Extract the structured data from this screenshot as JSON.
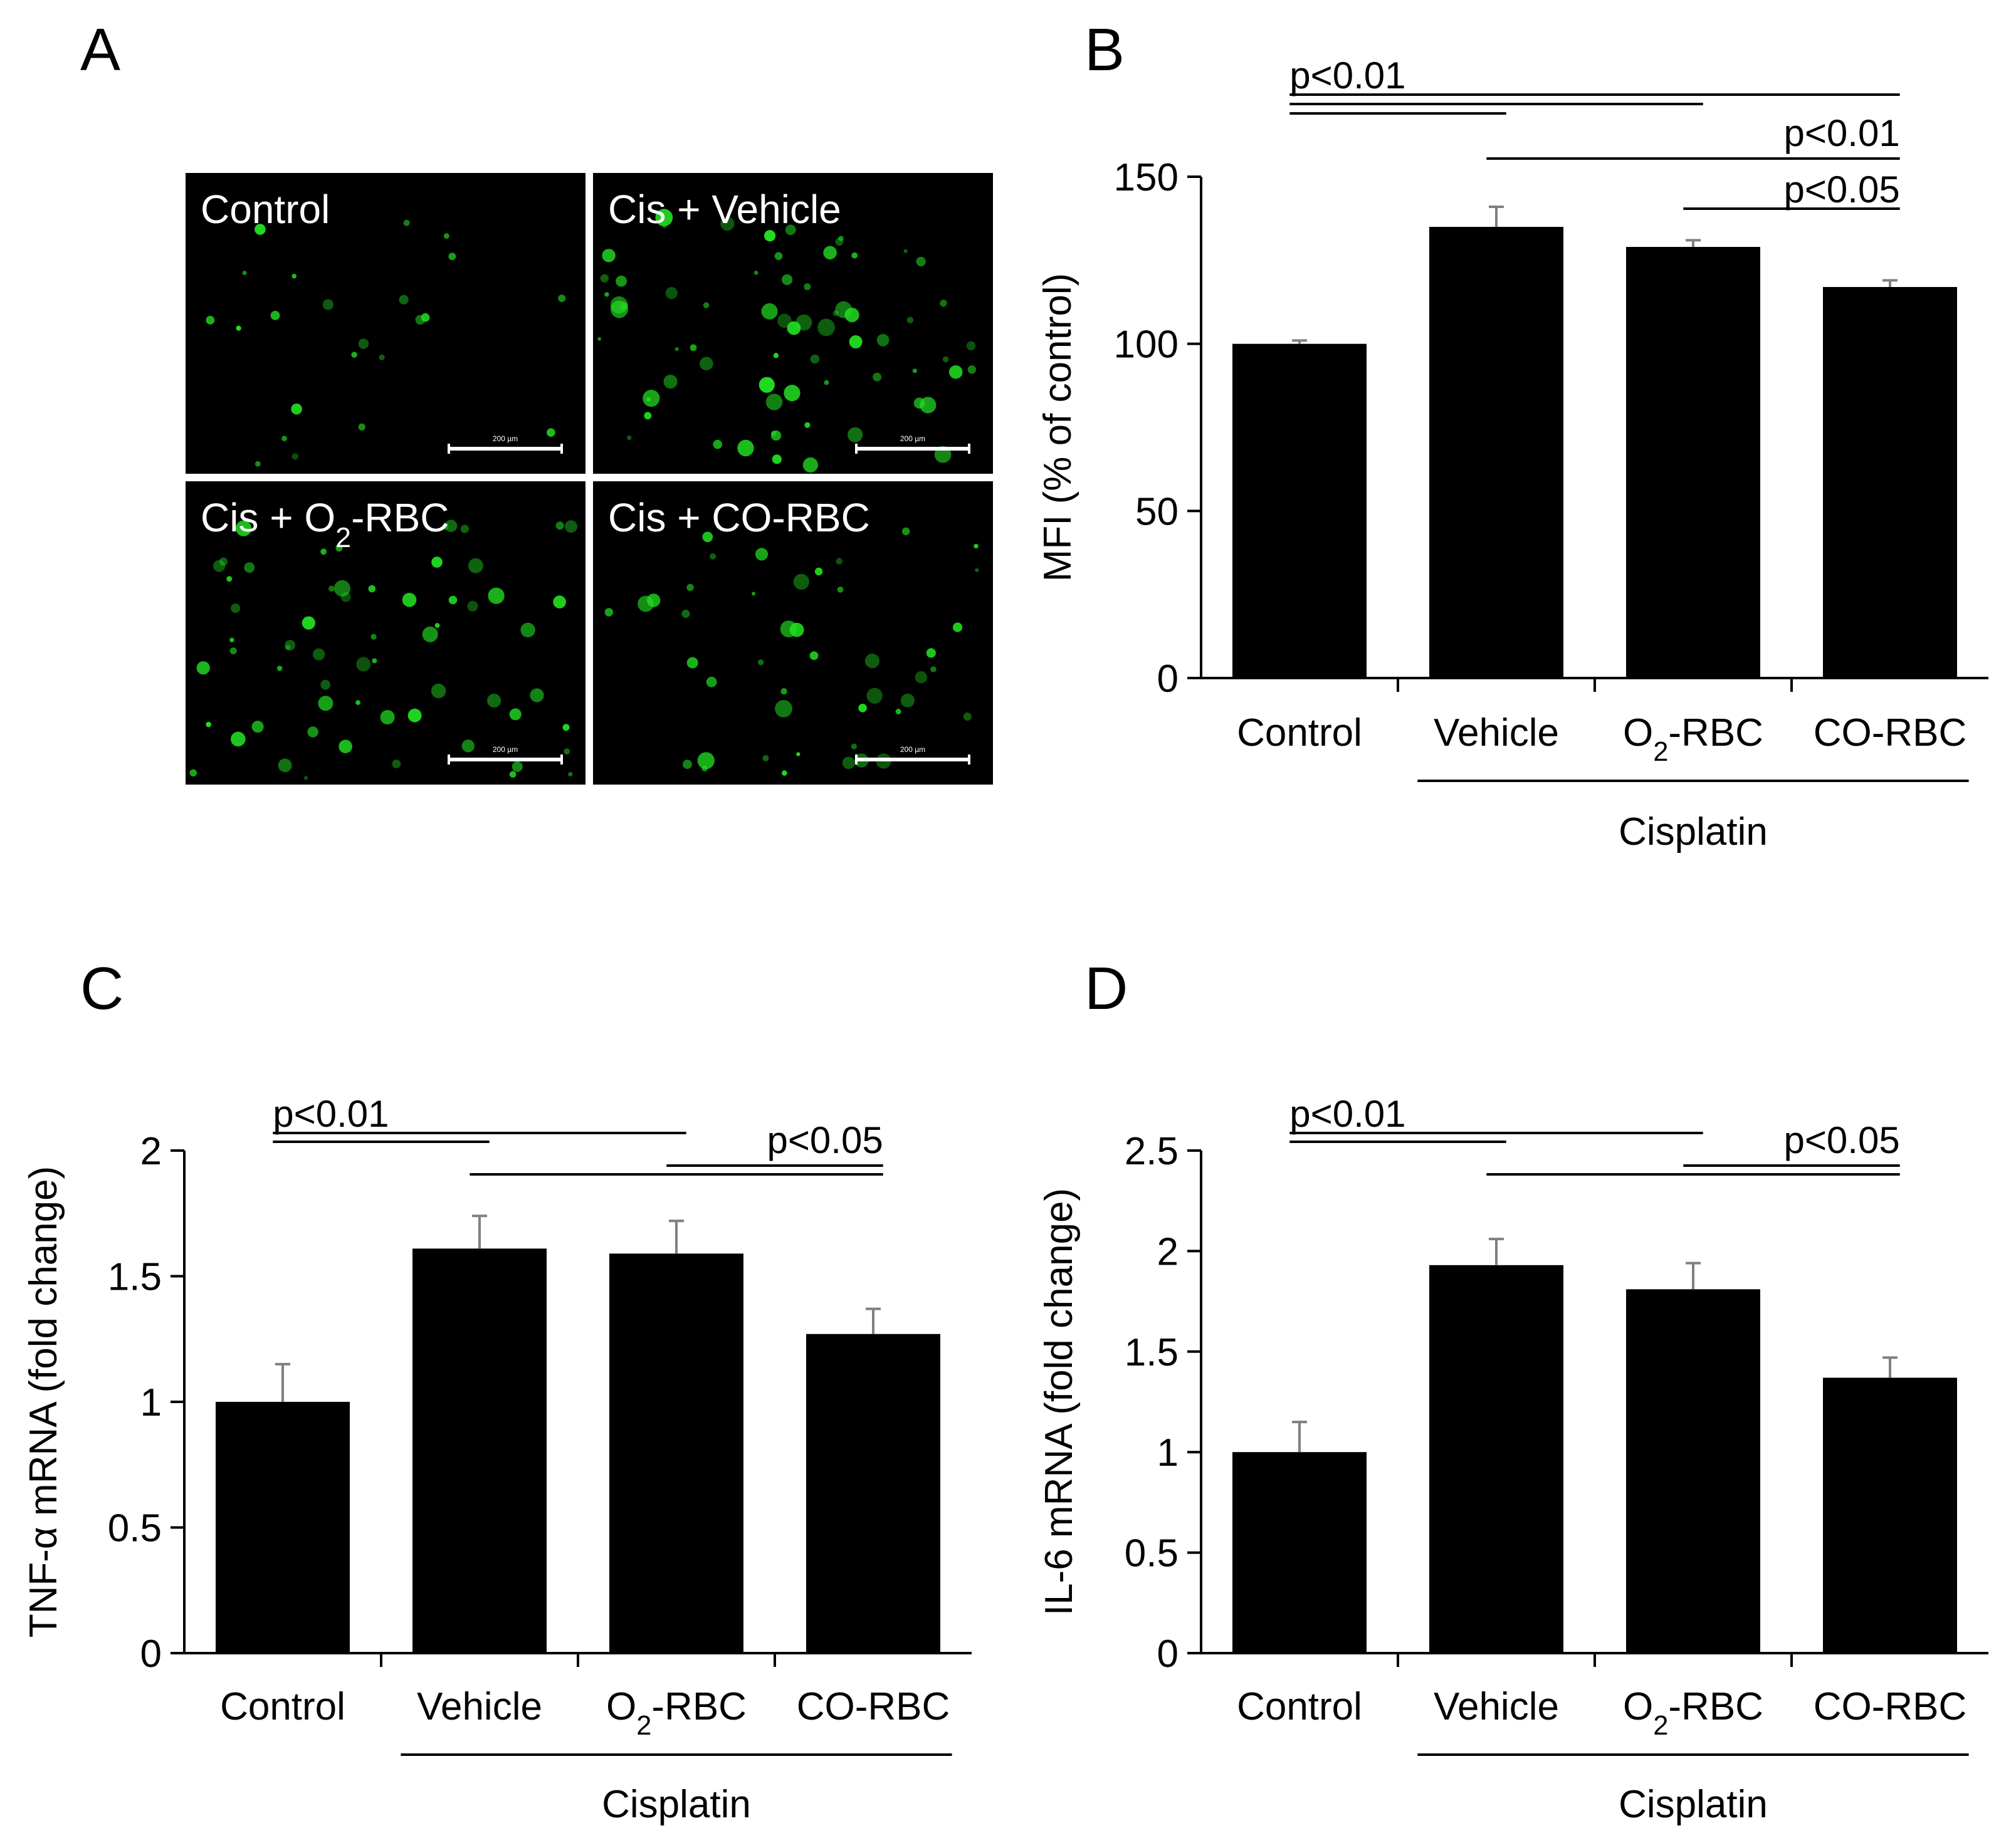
{
  "panel_letters": [
    "A",
    "B",
    "C",
    "D"
  ],
  "micrographs": [
    {
      "label": "Control",
      "label_sub": "",
      "label_suffix": "",
      "scale_label": "200 µm",
      "dot_density": 0.25
    },
    {
      "label": "Cis + Vehicle",
      "label_sub": "",
      "label_suffix": "",
      "scale_label": "200 µm",
      "dot_density": 1.0
    },
    {
      "label": "Cis + O",
      "label_sub": "2",
      "label_suffix": "-RBC",
      "scale_label": "200 µm",
      "dot_density": 0.9
    },
    {
      "label": "Cis + CO-RBC",
      "label_sub": "",
      "label_suffix": "",
      "scale_label": "200 µm",
      "dot_density": 0.6
    }
  ],
  "colors": {
    "bar": "#000000",
    "microscope_bg": "#000000",
    "fluorescence": "#22e022",
    "error_bar": "#808080"
  },
  "chart_data": [
    {
      "panel": "B",
      "type": "bar",
      "categories": [
        "Control",
        "Vehicle",
        "O2-RBC",
        "CO-RBC"
      ],
      "category_labels": [
        {
          "main": "Control",
          "sub": "",
          "suffix": ""
        },
        {
          "main": "Vehicle",
          "sub": "",
          "suffix": ""
        },
        {
          "main": "O",
          "sub": "2",
          "suffix": "-RBC"
        },
        {
          "main": "CO-RBC",
          "sub": "",
          "suffix": ""
        }
      ],
      "values": [
        100,
        135,
        129,
        117
      ],
      "errors": [
        1,
        6,
        2,
        2
      ],
      "ylabel": "MFI (% of control)",
      "ylim": [
        0,
        150
      ],
      "yticks": [
        0,
        50,
        100,
        150
      ],
      "ytick_labels": [
        "0",
        "50",
        "100",
        "150"
      ],
      "group_label": "Cisplatin",
      "group_span": [
        1,
        3
      ],
      "significance": [
        {
          "from": 0,
          "to": [
            1,
            2,
            3
          ],
          "label": "p<0.01"
        },
        {
          "from": 1,
          "to": [
            3
          ],
          "label": "p<0.01"
        },
        {
          "from": 2,
          "to": [
            3
          ],
          "label": "p<0.05"
        }
      ]
    },
    {
      "panel": "C",
      "type": "bar",
      "categories": [
        "Control",
        "Vehicle",
        "O2-RBC",
        "CO-RBC"
      ],
      "category_labels": [
        {
          "main": "Control",
          "sub": "",
          "suffix": ""
        },
        {
          "main": "Vehicle",
          "sub": "",
          "suffix": ""
        },
        {
          "main": "O",
          "sub": "2",
          "suffix": "-RBC"
        },
        {
          "main": "CO-RBC",
          "sub": "",
          "suffix": ""
        }
      ],
      "values": [
        1.0,
        1.61,
        1.59,
        1.27
      ],
      "errors": [
        0.15,
        0.13,
        0.13,
        0.1
      ],
      "ylabel": "TNF-α mRNA (fold change)",
      "ylim": [
        0,
        2
      ],
      "yticks": [
        0,
        0.5,
        1,
        1.5,
        2
      ],
      "ytick_labels": [
        "0",
        "0.5",
        "1",
        "1.5",
        "2"
      ],
      "group_label": "Cisplatin",
      "group_span": [
        1,
        3
      ],
      "significance": [
        {
          "from": 0,
          "to": [
            1,
            2
          ],
          "label": "p<0.01"
        },
        {
          "from": 1,
          "to": [
            3
          ],
          "label": ""
        },
        {
          "from": 2,
          "to": [
            3
          ],
          "label": "p<0.05"
        }
      ]
    },
    {
      "panel": "D",
      "type": "bar",
      "categories": [
        "Control",
        "Vehicle",
        "O2-RBC",
        "CO-RBC"
      ],
      "category_labels": [
        {
          "main": "Control",
          "sub": "",
          "suffix": ""
        },
        {
          "main": "Vehicle",
          "sub": "",
          "suffix": ""
        },
        {
          "main": "O",
          "sub": "2",
          "suffix": "-RBC"
        },
        {
          "main": "CO-RBC",
          "sub": "",
          "suffix": ""
        }
      ],
      "values": [
        1.0,
        1.93,
        1.81,
        1.37
      ],
      "errors": [
        0.15,
        0.13,
        0.13,
        0.1
      ],
      "ylabel": "IL-6 mRNA (fold change)",
      "ylim": [
        0,
        2.5
      ],
      "yticks": [
        0,
        0.5,
        1,
        1.5,
        2,
        2.5
      ],
      "ytick_labels": [
        "0",
        "0.5",
        "1",
        "1.5",
        "2",
        "2.5"
      ],
      "group_label": "Cisplatin",
      "group_span": [
        1,
        3
      ],
      "significance": [
        {
          "from": 0,
          "to": [
            1,
            2
          ],
          "label": "p<0.01"
        },
        {
          "from": 1,
          "to": [
            3
          ],
          "label": ""
        },
        {
          "from": 2,
          "to": [
            3
          ],
          "label": "p<0.05"
        }
      ]
    }
  ]
}
